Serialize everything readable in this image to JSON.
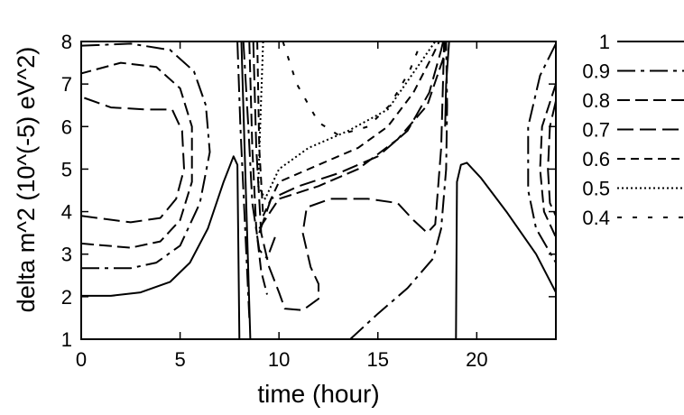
{
  "chart_data": {
    "type": "contour",
    "title": "",
    "xlabel": "time (hour)",
    "ylabel": "delta m^2 (10^(-5) eV^2)",
    "xlim": [
      0,
      24
    ],
    "ylim": [
      1,
      8
    ],
    "xticks": [
      "0",
      "5",
      "10",
      "15",
      "20"
    ],
    "yticks": [
      "1",
      "2",
      "3",
      "4",
      "5",
      "6",
      "7",
      "8"
    ],
    "grid": false,
    "legend_position": "right",
    "series": [
      {
        "name": "1",
        "dash": "none",
        "paths": [
          [
            [
              0,
              2.02
            ],
            [
              1.5,
              2.02
            ],
            [
              3,
              2.1
            ],
            [
              4.5,
              2.35
            ],
            [
              5.5,
              2.8
            ],
            [
              6.4,
              3.6
            ],
            [
              7.2,
              4.7
            ],
            [
              7.7,
              5.3
            ],
            [
              7.9,
              5.1
            ],
            [
              8.0,
              1.0
            ]
          ],
          [
            [
              8.55,
              1.0
            ],
            [
              8.1,
              8.0
            ]
          ],
          [
            [
              18.6,
              8.0
            ],
            [
              18.45,
              7.0
            ],
            [
              18.4,
              6.0
            ]
          ],
          [
            [
              18.95,
              1.0
            ],
            [
              19.0,
              4.7
            ],
            [
              19.2,
              5.1
            ],
            [
              19.5,
              5.15
            ],
            [
              20.2,
              4.8
            ],
            [
              21.5,
              4.0
            ],
            [
              23,
              3.0
            ],
            [
              24,
              2.1
            ]
          ]
        ]
      },
      {
        "name": "0.9",
        "dash": "20,6,4,6",
        "paths": [
          [
            [
              0,
              2.67
            ],
            [
              2.5,
              2.67
            ],
            [
              3.8,
              2.8
            ],
            [
              5.0,
              3.2
            ],
            [
              6.0,
              4.2
            ],
            [
              6.5,
              5.4
            ],
            [
              6.3,
              6.5
            ],
            [
              5.7,
              7.3
            ],
            [
              4.5,
              7.8
            ],
            [
              2.5,
              7.95
            ],
            [
              0,
              7.9
            ]
          ],
          [
            [
              7.9,
              8.0
            ],
            [
              8.05,
              6.0
            ],
            [
              8.3,
              3.5
            ],
            [
              8.5,
              1.5
            ]
          ],
          [
            [
              8.2,
              8.0
            ],
            [
              8.45,
              6.0
            ],
            [
              8.65,
              4.2
            ],
            [
              9.0,
              3.1
            ],
            [
              9.4,
              2.9
            ],
            [
              9.8,
              3.4
            ]
          ],
          [
            [
              13.6,
              1.0
            ],
            [
              15.0,
              1.6
            ],
            [
              16.5,
              2.2
            ],
            [
              17.8,
              2.9
            ],
            [
              18.2,
              3.6
            ],
            [
              18.45,
              5.0
            ],
            [
              18.5,
              6.5
            ],
            [
              18.45,
              8.0
            ]
          ],
          [
            [
              24,
              7.95
            ],
            [
              23.2,
              7.2
            ],
            [
              22.6,
              6.0
            ],
            [
              22.6,
              4.5
            ],
            [
              23.0,
              3.6
            ],
            [
              24,
              2.8
            ]
          ]
        ]
      },
      {
        "name": "0.8",
        "dash": "14,6",
        "paths": [
          [
            [
              0,
              3.25
            ],
            [
              2.5,
              3.15
            ],
            [
              4.0,
              3.3
            ],
            [
              5.0,
              3.8
            ],
            [
              5.6,
              4.7
            ],
            [
              5.6,
              6.0
            ],
            [
              5.0,
              6.9
            ],
            [
              3.8,
              7.4
            ],
            [
              2.0,
              7.5
            ],
            [
              0,
              7.25
            ]
          ],
          [
            [
              8.5,
              8.0
            ],
            [
              8.65,
              5.5
            ],
            [
              8.85,
              3.6
            ],
            [
              9.1,
              2.6
            ],
            [
              9.4,
              2.05
            ]
          ],
          [
            [
              9.0,
              3.6
            ],
            [
              10.0,
              4.3
            ],
            [
              12.0,
              4.6
            ],
            [
              14.0,
              5.0
            ],
            [
              16.0,
              5.7
            ],
            [
              17.5,
              6.5
            ],
            [
              18.3,
              7.6
            ],
            [
              18.45,
              8.0
            ]
          ],
          [
            [
              24,
              7.0
            ],
            [
              23.3,
              6.0
            ],
            [
              23.2,
              5.0
            ],
            [
              23.4,
              4.0
            ],
            [
              24,
              3.4
            ]
          ]
        ]
      },
      {
        "name": "0.7",
        "dash": "18,7",
        "paths": [
          [
            [
              0,
              3.9
            ],
            [
              2.5,
              3.75
            ],
            [
              4.0,
              3.85
            ],
            [
              4.8,
              4.3
            ],
            [
              5.2,
              5.0
            ],
            [
              5.1,
              5.9
            ],
            [
              4.6,
              6.4
            ],
            [
              3.3,
              6.4
            ],
            [
              1.5,
              6.45
            ],
            [
              0,
              6.7
            ]
          ],
          [
            [
              8.7,
              8.0
            ],
            [
              8.85,
              5.5
            ],
            [
              9.1,
              3.5
            ],
            [
              9.5,
              2.7
            ],
            [
              10.0,
              2.1
            ],
            [
              10.3,
              1.72
            ],
            [
              11.2,
              1.68
            ],
            [
              12.0,
              1.95
            ],
            [
              12.0,
              2.3
            ],
            [
              11.6,
              2.7
            ],
            [
              11.2,
              3.5
            ],
            [
              11.4,
              4.1
            ],
            [
              12.6,
              4.3
            ],
            [
              14.5,
              4.3
            ],
            [
              16.0,
              4.2
            ],
            [
              16.8,
              3.8
            ],
            [
              17.5,
              3.5
            ],
            [
              17.9,
              3.7
            ],
            [
              18.2,
              5.5
            ],
            [
              18.35,
              8.0
            ]
          ],
          [
            [
              9.0,
              3.5
            ],
            [
              9.6,
              4.3
            ],
            [
              11.0,
              4.6
            ],
            [
              13.0,
              4.9
            ],
            [
              15.0,
              5.3
            ],
            [
              16.5,
              5.9
            ],
            [
              17.6,
              6.8
            ],
            [
              18.2,
              7.8
            ],
            [
              18.3,
              8.0
            ]
          ],
          [
            [
              24,
              6.6
            ],
            [
              23.7,
              6.0
            ],
            [
              23.6,
              5.0
            ],
            [
              23.7,
              4.2
            ],
            [
              24,
              3.9
            ]
          ]
        ]
      },
      {
        "name": "0.6",
        "dash": "9,6",
        "paths": [
          [
            [
              8.9,
              8.0
            ],
            [
              9.0,
              5.5
            ],
            [
              9.2,
              3.9
            ]
          ],
          [
            [
              9.2,
              3.9
            ],
            [
              10.0,
              4.7
            ],
            [
              12.0,
              5.1
            ],
            [
              14.0,
              5.5
            ],
            [
              15.5,
              6.0
            ],
            [
              16.8,
              6.8
            ],
            [
              17.8,
              7.7
            ],
            [
              18.1,
              8.0
            ]
          ]
        ]
      },
      {
        "name": "0.5",
        "dash": "2,3",
        "paths": [
          [
            [
              9.2,
              8.0
            ],
            [
              9.05,
              6.0
            ],
            [
              8.95,
              4.6
            ],
            [
              9.3,
              4.3
            ],
            [
              10.0,
              5.0
            ],
            [
              11.5,
              5.5
            ],
            [
              13.5,
              5.9
            ],
            [
              15.5,
              6.4
            ],
            [
              16.7,
              7.2
            ],
            [
              17.6,
              7.8
            ],
            [
              17.9,
              8.0
            ]
          ]
        ]
      },
      {
        "name": "0.4",
        "dash": "5,12",
        "paths": [
          [
            [
              10.2,
              8.0
            ],
            [
              10.9,
              7.0
            ],
            [
              12.0,
              6.1
            ],
            [
              13.0,
              5.8
            ],
            [
              14.5,
              6.0
            ],
            [
              15.6,
              6.5
            ],
            [
              16.6,
              7.3
            ],
            [
              17.2,
              8.0
            ]
          ]
        ]
      }
    ]
  }
}
